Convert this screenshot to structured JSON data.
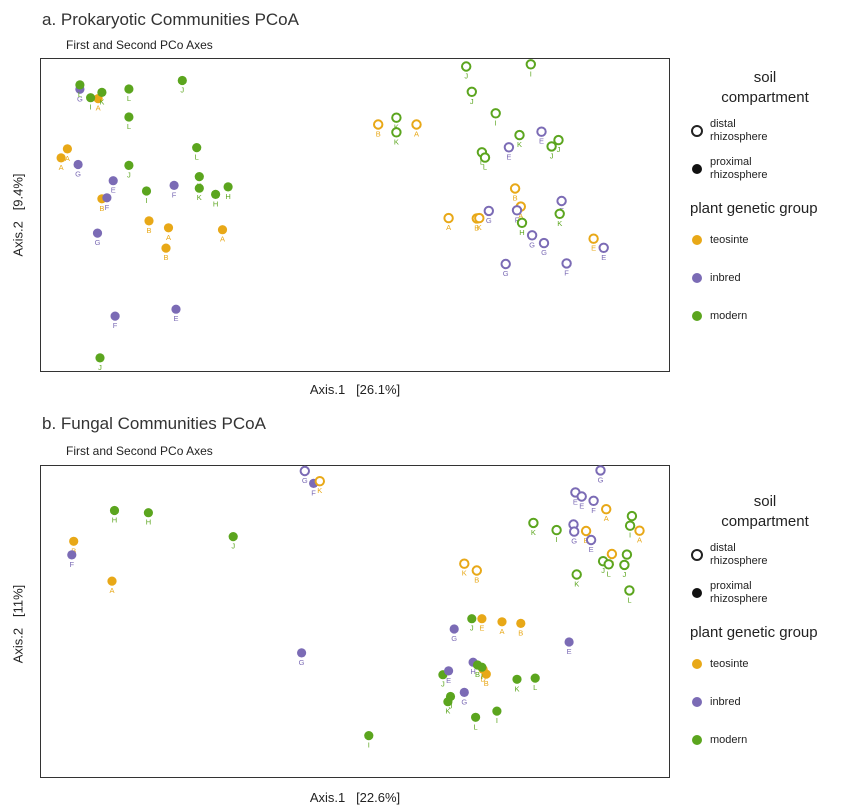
{
  "panels": [
    {
      "title": "a. Prokaryotic Communities PCoA",
      "subtitle": "First and Second PCo Axes"
    },
    {
      "title": "b. Fungal Communities PCoA",
      "subtitle": "First and Second PCo Axes"
    }
  ],
  "legend": {
    "compartment_title": "soil\ncompartment",
    "compartment_items": [
      "distal\nrhizosphere",
      "proximal\nrhizosphere"
    ],
    "group_title": "plant genetic group",
    "group_items": [
      "teosinte",
      "inbred",
      "modern"
    ],
    "colors": {
      "teosinte": "#E8A817",
      "inbred": "#7B6BB5",
      "modern": "#5BA51E"
    }
  },
  "chart_data": [
    {
      "type": "scatter",
      "title": "a. Prokaryotic Communities PCoA",
      "subtitle": "First and Second PCo Axes",
      "xlabel": "Axis.1   [26.1%]",
      "ylabel": "Axis.2   [9.4%]",
      "xlim": [
        0,
        1
      ],
      "ylim": [
        0,
        1
      ],
      "note": "Axis values are normalized PCoA scores (no tick labels shown).",
      "points": [
        {
          "x": 0.032,
          "y": 0.683,
          "g": "teosinte",
          "c": "proximal",
          "label": "A"
        },
        {
          "x": 0.059,
          "y": 0.662,
          "g": "inbred",
          "c": "proximal",
          "label": "G"
        },
        {
          "x": 0.091,
          "y": 0.873,
          "g": "teosinte",
          "c": "proximal",
          "label": "A"
        },
        {
          "x": 0.097,
          "y": 0.552,
          "g": "teosinte",
          "c": "proximal",
          "label": "B"
        },
        {
          "x": 0.105,
          "y": 0.555,
          "g": "inbred",
          "c": "proximal",
          "label": "F"
        },
        {
          "x": 0.079,
          "y": 0.876,
          "g": "modern",
          "c": "proximal",
          "label": "I"
        },
        {
          "x": 0.062,
          "y": 0.903,
          "g": "inbred",
          "c": "proximal",
          "label": "G"
        },
        {
          "x": 0.062,
          "y": 0.917,
          "g": "modern",
          "c": "proximal",
          "label": "L"
        },
        {
          "x": 0.097,
          "y": 0.893,
          "g": "modern",
          "c": "proximal",
          "label": "K"
        },
        {
          "x": 0.14,
          "y": 0.904,
          "g": "modern",
          "c": "proximal",
          "label": "L"
        },
        {
          "x": 0.14,
          "y": 0.814,
          "g": "modern",
          "c": "proximal",
          "label": "L"
        },
        {
          "x": 0.225,
          "y": 0.931,
          "g": "modern",
          "c": "proximal",
          "label": "J"
        },
        {
          "x": 0.14,
          "y": 0.659,
          "g": "modern",
          "c": "proximal",
          "label": "J"
        },
        {
          "x": 0.115,
          "y": 0.61,
          "g": "inbred",
          "c": "proximal",
          "label": "E"
        },
        {
          "x": 0.168,
          "y": 0.577,
          "g": "modern",
          "c": "proximal",
          "label": "I"
        },
        {
          "x": 0.212,
          "y": 0.595,
          "g": "inbred",
          "c": "proximal",
          "label": "F"
        },
        {
          "x": 0.252,
          "y": 0.623,
          "g": "modern",
          "c": "proximal",
          "label": "K"
        },
        {
          "x": 0.252,
          "y": 0.586,
          "g": "modern",
          "c": "proximal",
          "label": "K"
        },
        {
          "x": 0.248,
          "y": 0.716,
          "g": "modern",
          "c": "proximal",
          "label": "L"
        },
        {
          "x": 0.278,
          "y": 0.566,
          "g": "modern",
          "c": "proximal",
          "label": "H"
        },
        {
          "x": 0.298,
          "y": 0.59,
          "g": "modern",
          "c": "proximal",
          "label": "H"
        },
        {
          "x": 0.172,
          "y": 0.481,
          "g": "teosinte",
          "c": "proximal",
          "label": "B"
        },
        {
          "x": 0.203,
          "y": 0.459,
          "g": "teosinte",
          "c": "proximal",
          "label": "A"
        },
        {
          "x": 0.289,
          "y": 0.453,
          "g": "teosinte",
          "c": "proximal",
          "label": "A"
        },
        {
          "x": 0.09,
          "y": 0.442,
          "g": "inbred",
          "c": "proximal",
          "label": "G"
        },
        {
          "x": 0.199,
          "y": 0.394,
          "g": "teosinte",
          "c": "proximal",
          "label": "B"
        },
        {
          "x": 0.215,
          "y": 0.198,
          "g": "inbred",
          "c": "proximal",
          "label": "E"
        },
        {
          "x": 0.118,
          "y": 0.176,
          "g": "inbred",
          "c": "proximal",
          "label": "F"
        },
        {
          "x": 0.094,
          "y": 0.042,
          "g": "modern",
          "c": "proximal",
          "label": "J"
        },
        {
          "x": 0.042,
          "y": 0.712,
          "g": "teosinte",
          "c": "proximal",
          "label": "A"
        },
        {
          "x": 0.537,
          "y": 0.79,
          "g": "teosinte",
          "c": "distal",
          "label": "B"
        },
        {
          "x": 0.566,
          "y": 0.812,
          "g": "modern",
          "c": "distal",
          "label": "K"
        },
        {
          "x": 0.566,
          "y": 0.765,
          "g": "modern",
          "c": "distal",
          "label": "K"
        },
        {
          "x": 0.598,
          "y": 0.79,
          "g": "teosinte",
          "c": "distal",
          "label": "A"
        },
        {
          "x": 0.677,
          "y": 0.976,
          "g": "modern",
          "c": "distal",
          "label": "J"
        },
        {
          "x": 0.78,
          "y": 0.983,
          "g": "modern",
          "c": "distal",
          "label": "I"
        },
        {
          "x": 0.686,
          "y": 0.895,
          "g": "modern",
          "c": "distal",
          "label": "J"
        },
        {
          "x": 0.724,
          "y": 0.826,
          "g": "modern",
          "c": "distal",
          "label": "I"
        },
        {
          "x": 0.797,
          "y": 0.767,
          "g": "inbred",
          "c": "distal",
          "label": "E"
        },
        {
          "x": 0.762,
          "y": 0.756,
          "g": "modern",
          "c": "distal",
          "label": "K"
        },
        {
          "x": 0.813,
          "y": 0.72,
          "g": "modern",
          "c": "distal",
          "label": "J"
        },
        {
          "x": 0.824,
          "y": 0.74,
          "g": "modern",
          "c": "distal",
          "label": "J"
        },
        {
          "x": 0.702,
          "y": 0.701,
          "g": "modern",
          "c": "distal",
          "label": "L"
        },
        {
          "x": 0.707,
          "y": 0.684,
          "g": "modern",
          "c": "distal",
          "label": "L"
        },
        {
          "x": 0.745,
          "y": 0.717,
          "g": "inbred",
          "c": "distal",
          "label": "E"
        },
        {
          "x": 0.755,
          "y": 0.585,
          "g": "teosinte",
          "c": "distal",
          "label": "B"
        },
        {
          "x": 0.764,
          "y": 0.527,
          "g": "teosinte",
          "c": "distal",
          "label": "A"
        },
        {
          "x": 0.758,
          "y": 0.515,
          "g": "inbred",
          "c": "distal",
          "label": "F"
        },
        {
          "x": 0.829,
          "y": 0.545,
          "g": "inbred",
          "c": "distal",
          "label": "F"
        },
        {
          "x": 0.826,
          "y": 0.504,
          "g": "modern",
          "c": "distal",
          "label": "K"
        },
        {
          "x": 0.649,
          "y": 0.49,
          "g": "teosinte",
          "c": "distal",
          "label": "A"
        },
        {
          "x": 0.694,
          "y": 0.489,
          "g": "teosinte",
          "c": "distal",
          "label": "B"
        },
        {
          "x": 0.713,
          "y": 0.513,
          "g": "inbred",
          "c": "distal",
          "label": "G"
        },
        {
          "x": 0.698,
          "y": 0.49,
          "g": "teosinte",
          "c": "distal",
          "label": "K"
        },
        {
          "x": 0.766,
          "y": 0.475,
          "g": "modern",
          "c": "distal",
          "label": "H"
        },
        {
          "x": 0.782,
          "y": 0.435,
          "g": "inbred",
          "c": "distal",
          "label": "G"
        },
        {
          "x": 0.801,
          "y": 0.41,
          "g": "inbred",
          "c": "distal",
          "label": "G"
        },
        {
          "x": 0.74,
          "y": 0.343,
          "g": "inbred",
          "c": "distal",
          "label": "G"
        },
        {
          "x": 0.837,
          "y": 0.345,
          "g": "inbred",
          "c": "distal",
          "label": "F"
        },
        {
          "x": 0.88,
          "y": 0.424,
          "g": "teosinte",
          "c": "distal",
          "label": "E"
        },
        {
          "x": 0.896,
          "y": 0.395,
          "g": "inbred",
          "c": "distal",
          "label": "E"
        }
      ]
    },
    {
      "type": "scatter",
      "title": "b. Fungal Communities PCoA",
      "subtitle": "First and Second PCo Axes",
      "xlabel": "Axis.1   [22.6%]",
      "ylabel": "Axis.2   [11%]",
      "xlim": [
        0,
        1
      ],
      "ylim": [
        0,
        1
      ],
      "note": "Axis values are normalized PCoA scores (no tick labels shown).",
      "points": [
        {
          "x": 0.052,
          "y": 0.758,
          "g": "teosinte",
          "c": "proximal",
          "label": "B"
        },
        {
          "x": 0.049,
          "y": 0.714,
          "g": "inbred",
          "c": "proximal",
          "label": "F"
        },
        {
          "x": 0.113,
          "y": 0.63,
          "g": "teosinte",
          "c": "proximal",
          "label": "A"
        },
        {
          "x": 0.117,
          "y": 0.857,
          "g": "modern",
          "c": "proximal",
          "label": "H"
        },
        {
          "x": 0.171,
          "y": 0.85,
          "g": "modern",
          "c": "proximal",
          "label": "H"
        },
        {
          "x": 0.306,
          "y": 0.773,
          "g": "modern",
          "c": "proximal",
          "label": "J"
        },
        {
          "x": 0.434,
          "y": 0.944,
          "g": "inbred",
          "c": "proximal",
          "label": "F"
        },
        {
          "x": 0.415,
          "y": 0.399,
          "g": "inbred",
          "c": "proximal",
          "label": "G"
        },
        {
          "x": 0.522,
          "y": 0.133,
          "g": "modern",
          "c": "proximal",
          "label": "I"
        },
        {
          "x": 0.658,
          "y": 0.476,
          "g": "inbred",
          "c": "proximal",
          "label": "G"
        },
        {
          "x": 0.686,
          "y": 0.509,
          "g": "modern",
          "c": "proximal",
          "label": "J"
        },
        {
          "x": 0.702,
          "y": 0.509,
          "g": "teosinte",
          "c": "proximal",
          "label": "E"
        },
        {
          "x": 0.734,
          "y": 0.499,
          "g": "teosinte",
          "c": "proximal",
          "label": "A"
        },
        {
          "x": 0.764,
          "y": 0.494,
          "g": "teosinte",
          "c": "proximal",
          "label": "B"
        },
        {
          "x": 0.841,
          "y": 0.434,
          "g": "inbred",
          "c": "proximal",
          "label": "E"
        },
        {
          "x": 0.64,
          "y": 0.329,
          "g": "modern",
          "c": "proximal",
          "label": "J"
        },
        {
          "x": 0.649,
          "y": 0.341,
          "g": "inbred",
          "c": "proximal",
          "label": "E"
        },
        {
          "x": 0.688,
          "y": 0.369,
          "g": "inbred",
          "c": "proximal",
          "label": "H"
        },
        {
          "x": 0.695,
          "y": 0.36,
          "g": "modern",
          "c": "proximal",
          "label": "B"
        },
        {
          "x": 0.704,
          "y": 0.346,
          "g": "teosinte",
          "c": "proximal",
          "label": "D"
        },
        {
          "x": 0.709,
          "y": 0.331,
          "g": "teosinte",
          "c": "proximal",
          "label": "B"
        },
        {
          "x": 0.702,
          "y": 0.353,
          "g": "modern",
          "c": "proximal",
          "label": "I"
        },
        {
          "x": 0.674,
          "y": 0.272,
          "g": "inbred",
          "c": "proximal",
          "label": "G"
        },
        {
          "x": 0.758,
          "y": 0.314,
          "g": "modern",
          "c": "proximal",
          "label": "K"
        },
        {
          "x": 0.787,
          "y": 0.318,
          "g": "modern",
          "c": "proximal",
          "label": "L"
        },
        {
          "x": 0.652,
          "y": 0.259,
          "g": "modern",
          "c": "proximal",
          "label": "J"
        },
        {
          "x": 0.648,
          "y": 0.242,
          "g": "modern",
          "c": "proximal",
          "label": "K"
        },
        {
          "x": 0.692,
          "y": 0.192,
          "g": "modern",
          "c": "proximal",
          "label": "L"
        },
        {
          "x": 0.726,
          "y": 0.212,
          "g": "modern",
          "c": "proximal",
          "label": "I"
        },
        {
          "x": 0.42,
          "y": 0.984,
          "g": "inbred",
          "c": "distal",
          "label": "G"
        },
        {
          "x": 0.444,
          "y": 0.951,
          "g": "teosinte",
          "c": "distal",
          "label": "K"
        },
        {
          "x": 0.674,
          "y": 0.686,
          "g": "teosinte",
          "c": "distal",
          "label": "K"
        },
        {
          "x": 0.694,
          "y": 0.664,
          "g": "teosinte",
          "c": "distal",
          "label": "B"
        },
        {
          "x": 0.784,
          "y": 0.817,
          "g": "modern",
          "c": "distal",
          "label": "K"
        },
        {
          "x": 0.821,
          "y": 0.794,
          "g": "modern",
          "c": "distal",
          "label": "I"
        },
        {
          "x": 0.891,
          "y": 0.986,
          "g": "inbred",
          "c": "distal",
          "label": "G"
        },
        {
          "x": 0.851,
          "y": 0.915,
          "g": "inbred",
          "c": "distal",
          "label": "E"
        },
        {
          "x": 0.861,
          "y": 0.902,
          "g": "inbred",
          "c": "distal",
          "label": "E"
        },
        {
          "x": 0.88,
          "y": 0.888,
          "g": "inbred",
          "c": "distal",
          "label": "F"
        },
        {
          "x": 0.9,
          "y": 0.861,
          "g": "teosinte",
          "c": "distal",
          "label": "A"
        },
        {
          "x": 0.848,
          "y": 0.812,
          "g": "inbred",
          "c": "distal",
          "label": "G"
        },
        {
          "x": 0.849,
          "y": 0.789,
          "g": "inbred",
          "c": "distal",
          "label": "G"
        },
        {
          "x": 0.868,
          "y": 0.791,
          "g": "teosinte",
          "c": "distal",
          "label": "B"
        },
        {
          "x": 0.876,
          "y": 0.762,
          "g": "inbred",
          "c": "distal",
          "label": "E"
        },
        {
          "x": 0.941,
          "y": 0.839,
          "g": "modern",
          "c": "distal",
          "label": "L"
        },
        {
          "x": 0.938,
          "y": 0.808,
          "g": "modern",
          "c": "distal",
          "label": "I"
        },
        {
          "x": 0.953,
          "y": 0.792,
          "g": "teosinte",
          "c": "distal",
          "label": "A"
        },
        {
          "x": 0.909,
          "y": 0.717,
          "g": "teosinte",
          "c": "distal",
          "label": "B"
        },
        {
          "x": 0.895,
          "y": 0.694,
          "g": "modern",
          "c": "distal",
          "label": "J"
        },
        {
          "x": 0.904,
          "y": 0.684,
          "g": "modern",
          "c": "distal",
          "label": "L"
        },
        {
          "x": 0.933,
          "y": 0.715,
          "g": "modern",
          "c": "distal",
          "label": "I"
        },
        {
          "x": 0.853,
          "y": 0.651,
          "g": "modern",
          "c": "distal",
          "label": "K"
        },
        {
          "x": 0.929,
          "y": 0.682,
          "g": "modern",
          "c": "distal",
          "label": "J"
        },
        {
          "x": 0.937,
          "y": 0.6,
          "g": "modern",
          "c": "distal",
          "label": "L"
        }
      ]
    }
  ]
}
